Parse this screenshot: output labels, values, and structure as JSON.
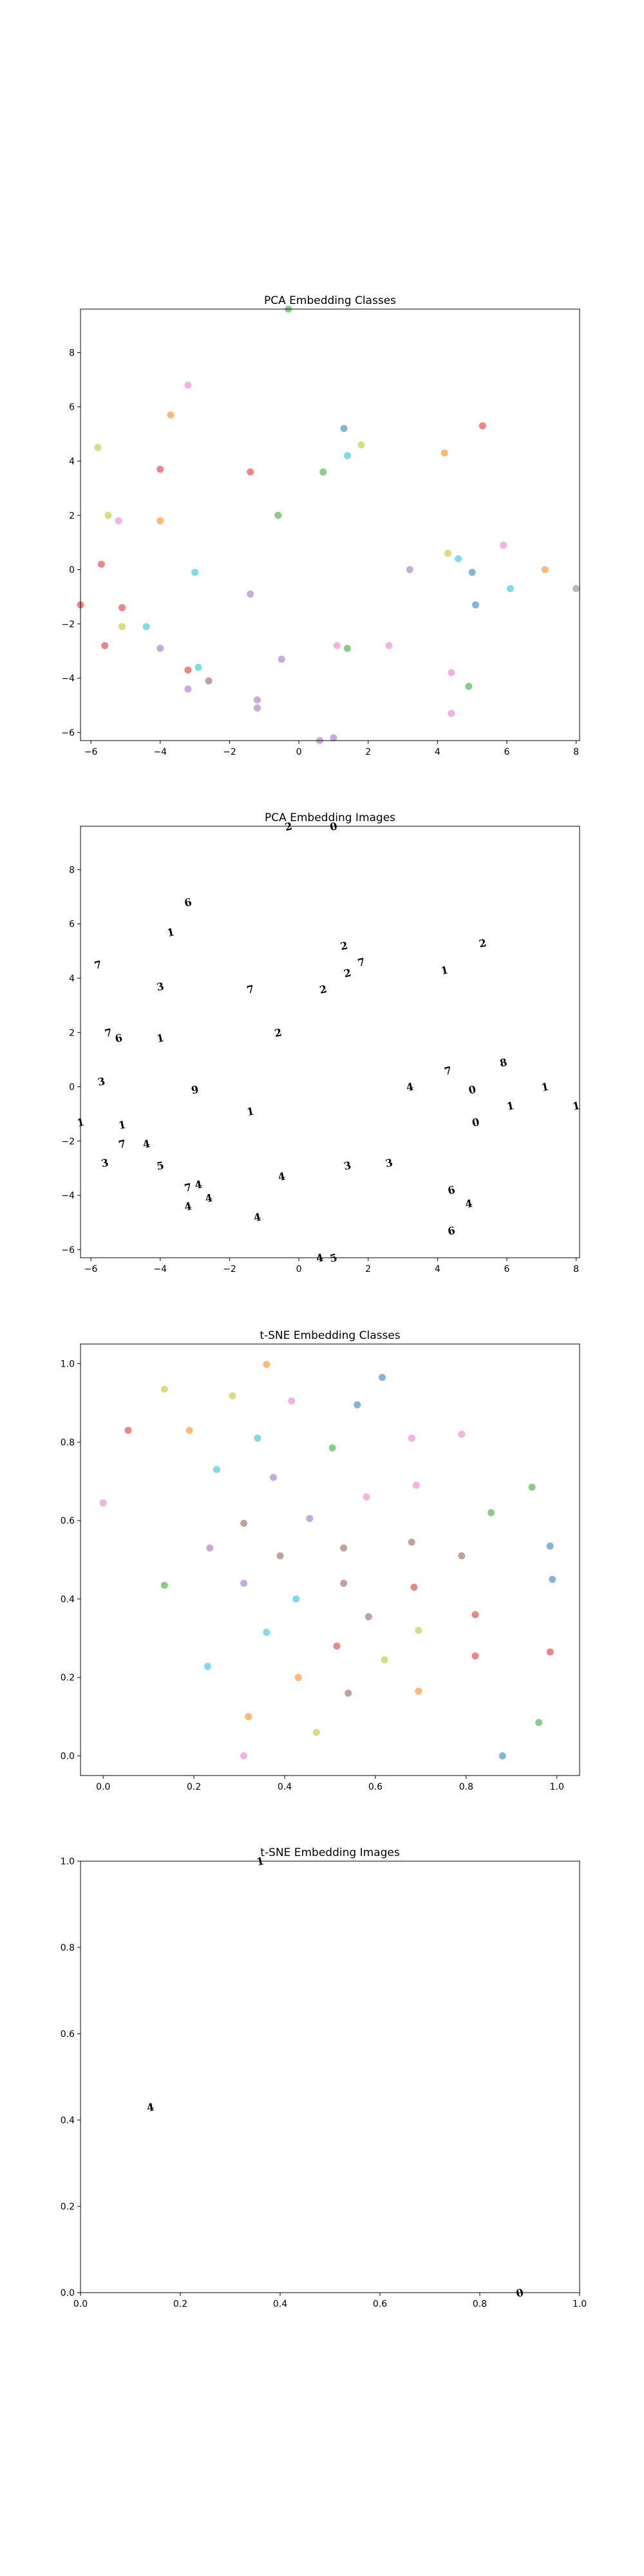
{
  "chart_data": [
    {
      "type": "scatter",
      "title": "PCA Embedding Classes",
      "xlim": [
        -6.3,
        8.1
      ],
      "ylim": [
        -6.3,
        9.6
      ],
      "xticks": [
        -6,
        -4,
        -2,
        0,
        2,
        4,
        6,
        8
      ],
      "yticks": [
        -6,
        -4,
        -2,
        0,
        2,
        4,
        6,
        8
      ],
      "points": [
        {
          "x": -3.2,
          "y": 6.8,
          "color": "#e377c2"
        },
        {
          "x": -3.7,
          "y": 5.7,
          "color": "#ff7f0e"
        },
        {
          "x": -5.8,
          "y": 4.5,
          "color": "#bcbd22"
        },
        {
          "x": -4.0,
          "y": 3.7,
          "color": "#d62728"
        },
        {
          "x": -5.5,
          "y": 2.0,
          "color": "#bcbd22"
        },
        {
          "x": -5.2,
          "y": 1.8,
          "color": "#e377c2"
        },
        {
          "x": -4.0,
          "y": 1.8,
          "color": "#ff7f0e"
        },
        {
          "x": -5.7,
          "y": 0.2,
          "color": "#d62728"
        },
        {
          "x": -5.1,
          "y": -1.4,
          "color": "#d62728"
        },
        {
          "x": -5.1,
          "y": -2.1,
          "color": "#bcbd22"
        },
        {
          "x": -4.4,
          "y": -2.1,
          "color": "#17becf"
        },
        {
          "x": -5.6,
          "y": -2.8,
          "color": "#d62728"
        },
        {
          "x": -4.0,
          "y": -2.9,
          "color": "#9467bd"
        },
        {
          "x": -3.0,
          "y": -0.1,
          "color": "#17becf"
        },
        {
          "x": -2.9,
          "y": -3.6,
          "color": "#17becf"
        },
        {
          "x": -3.2,
          "y": -3.7,
          "color": "#d62728"
        },
        {
          "x": -3.2,
          "y": -4.4,
          "color": "#9467bd"
        },
        {
          "x": -2.6,
          "y": -4.1,
          "color": "#8c564b"
        },
        {
          "x": -1.4,
          "y": 3.6,
          "color": "#d62728"
        },
        {
          "x": -1.4,
          "y": -0.9,
          "color": "#9467bd"
        },
        {
          "x": -1.2,
          "y": -4.8,
          "color": "#9467bd"
        },
        {
          "x": -1.2,
          "y": -5.1,
          "color": "#9467bd"
        },
        {
          "x": -0.6,
          "y": 2.0,
          "color": "#2ca02c"
        },
        {
          "x": -0.5,
          "y": -3.3,
          "color": "#9467bd"
        },
        {
          "x": -0.3,
          "y": 9.6,
          "color": "#2ca02c"
        },
        {
          "x": 0.7,
          "y": 3.6,
          "color": "#2ca02c"
        },
        {
          "x": 1.3,
          "y": 5.2,
          "color": "#1f77b4"
        },
        {
          "x": 1.4,
          "y": 4.2,
          "color": "#17becf"
        },
        {
          "x": 1.8,
          "y": 4.6,
          "color": "#bcbd22"
        },
        {
          "x": 1.1,
          "y": -2.8,
          "color": "#e377c2"
        },
        {
          "x": 1.4,
          "y": -2.9,
          "color": "#2ca02c"
        },
        {
          "x": 0.6,
          "y": -6.3,
          "color": "#9467bd"
        },
        {
          "x": 1.0,
          "y": -6.2,
          "color": "#9467bd"
        },
        {
          "x": 2.6,
          "y": -2.8,
          "color": "#e377c2"
        },
        {
          "x": 3.2,
          "y": 0.0,
          "color": "#9467bd"
        },
        {
          "x": 4.2,
          "y": 4.3,
          "color": "#ff7f0e"
        },
        {
          "x": 5.3,
          "y": 5.3,
          "color": "#d62728"
        },
        {
          "x": 4.3,
          "y": 0.6,
          "color": "#bcbd22"
        },
        {
          "x": 4.6,
          "y": 0.4,
          "color": "#17becf"
        },
        {
          "x": 5.0,
          "y": -0.1,
          "color": "#1f77b4"
        },
        {
          "x": 5.1,
          "y": -1.3,
          "color": "#1f77b4"
        },
        {
          "x": 4.4,
          "y": -3.8,
          "color": "#e377c2"
        },
        {
          "x": 4.9,
          "y": -4.3,
          "color": "#2ca02c"
        },
        {
          "x": 4.4,
          "y": -5.3,
          "color": "#e377c2"
        },
        {
          "x": 5.9,
          "y": 0.9,
          "color": "#e377c2"
        },
        {
          "x": 6.1,
          "y": -0.7,
          "color": "#17becf"
        },
        {
          "x": 7.1,
          "y": 0.0,
          "color": "#ff7f0e"
        },
        {
          "x": 8.0,
          "y": -0.7,
          "color": "#7f7f7f"
        },
        {
          "x": -6.3,
          "y": -1.3,
          "color": "#d62728"
        }
      ]
    },
    {
      "type": "scatter",
      "title": "PCA Embedding Images",
      "xlim": [
        -6.3,
        8.1
      ],
      "ylim": [
        -6.3,
        9.6
      ],
      "xticks": [
        -6,
        -4,
        -2,
        0,
        2,
        4,
        6,
        8
      ],
      "yticks": [
        -6,
        -4,
        -2,
        0,
        2,
        4,
        6,
        8
      ],
      "points": [
        {
          "x": -3.2,
          "y": 6.8,
          "glyph": "6"
        },
        {
          "x": -3.7,
          "y": 5.7,
          "glyph": "1"
        },
        {
          "x": -5.8,
          "y": 4.5,
          "glyph": "7"
        },
        {
          "x": -4.0,
          "y": 3.7,
          "glyph": "3"
        },
        {
          "x": -5.5,
          "y": 2.0,
          "glyph": "7"
        },
        {
          "x": -5.2,
          "y": 1.8,
          "glyph": "6"
        },
        {
          "x": -4.0,
          "y": 1.8,
          "glyph": "1"
        },
        {
          "x": -5.7,
          "y": 0.2,
          "glyph": "3"
        },
        {
          "x": -5.1,
          "y": -1.4,
          "glyph": "1"
        },
        {
          "x": -5.1,
          "y": -2.1,
          "glyph": "7"
        },
        {
          "x": -4.4,
          "y": -2.1,
          "glyph": "4"
        },
        {
          "x": -5.6,
          "y": -2.8,
          "glyph": "3"
        },
        {
          "x": -4.0,
          "y": -2.9,
          "glyph": "5"
        },
        {
          "x": -3.0,
          "y": -0.1,
          "glyph": "9"
        },
        {
          "x": -2.9,
          "y": -3.6,
          "glyph": "4"
        },
        {
          "x": -3.2,
          "y": -3.7,
          "glyph": "7"
        },
        {
          "x": -3.2,
          "y": -4.4,
          "glyph": "4"
        },
        {
          "x": -2.6,
          "y": -4.1,
          "glyph": "4"
        },
        {
          "x": -1.4,
          "y": 3.6,
          "glyph": "7"
        },
        {
          "x": -1.4,
          "y": -0.9,
          "glyph": "1"
        },
        {
          "x": -1.2,
          "y": -4.8,
          "glyph": "4"
        },
        {
          "x": -0.6,
          "y": 2.0,
          "glyph": "2"
        },
        {
          "x": -0.5,
          "y": -3.3,
          "glyph": "4"
        },
        {
          "x": -0.3,
          "y": 9.6,
          "glyph": "2"
        },
        {
          "x": 0.7,
          "y": 3.6,
          "glyph": "2"
        },
        {
          "x": 1.3,
          "y": 5.2,
          "glyph": "2"
        },
        {
          "x": 1.4,
          "y": 4.2,
          "glyph": "2"
        },
        {
          "x": 1.8,
          "y": 4.6,
          "glyph": "7"
        },
        {
          "x": 1.4,
          "y": -2.9,
          "glyph": "3"
        },
        {
          "x": 1.0,
          "y": 9.6,
          "glyph": "0"
        },
        {
          "x": 0.6,
          "y": -6.3,
          "glyph": "4"
        },
        {
          "x": 1.0,
          "y": -6.3,
          "glyph": "5"
        },
        {
          "x": 2.6,
          "y": -2.8,
          "glyph": "3"
        },
        {
          "x": 3.2,
          "y": 0.0,
          "glyph": "4"
        },
        {
          "x": 4.2,
          "y": 4.3,
          "glyph": "1"
        },
        {
          "x": 5.3,
          "y": 5.3,
          "glyph": "2"
        },
        {
          "x": 4.3,
          "y": 0.6,
          "glyph": "7"
        },
        {
          "x": 5.0,
          "y": -0.1,
          "glyph": "0"
        },
        {
          "x": 5.1,
          "y": -1.3,
          "glyph": "0"
        },
        {
          "x": 4.4,
          "y": -3.8,
          "glyph": "6"
        },
        {
          "x": 4.9,
          "y": -4.3,
          "glyph": "4"
        },
        {
          "x": 4.4,
          "y": -5.3,
          "glyph": "6"
        },
        {
          "x": 5.9,
          "y": 0.9,
          "glyph": "8"
        },
        {
          "x": 6.1,
          "y": -0.7,
          "glyph": "1"
        },
        {
          "x": 7.1,
          "y": 0.0,
          "glyph": "1"
        },
        {
          "x": 8.0,
          "y": -0.7,
          "glyph": "1"
        },
        {
          "x": -6.3,
          "y": -1.3,
          "glyph": "1"
        }
      ]
    },
    {
      "type": "scatter",
      "title": "t-SNE Embedding Classes",
      "xlim": [
        -0.05,
        1.05
      ],
      "ylim": [
        -0.05,
        1.05
      ],
      "xticks": [
        0.0,
        0.2,
        0.4,
        0.6,
        0.8,
        1.0
      ],
      "yticks": [
        0.0,
        0.2,
        0.4,
        0.6,
        0.8,
        1.0
      ],
      "points": [
        {
          "x": 0.0,
          "y": 0.645,
          "color": "#e377c2"
        },
        {
          "x": 0.055,
          "y": 0.83,
          "color": "#d62728"
        },
        {
          "x": 0.135,
          "y": 0.935,
          "color": "#bcbd22"
        },
        {
          "x": 0.135,
          "y": 0.435,
          "color": "#2ca02c"
        },
        {
          "x": 0.19,
          "y": 0.83,
          "color": "#ff7f0e"
        },
        {
          "x": 0.23,
          "y": 0.228,
          "color": "#17becf"
        },
        {
          "x": 0.235,
          "y": 0.53,
          "color": "#9467bd"
        },
        {
          "x": 0.25,
          "y": 0.73,
          "color": "#17becf"
        },
        {
          "x": 0.285,
          "y": 0.918,
          "color": "#bcbd22"
        },
        {
          "x": 0.31,
          "y": 0.593,
          "color": "#8c564b"
        },
        {
          "x": 0.31,
          "y": 0.44,
          "color": "#9467bd"
        },
        {
          "x": 0.31,
          "y": 0.0,
          "color": "#e377c2"
        },
        {
          "x": 0.32,
          "y": 0.1,
          "color": "#ff7f0e"
        },
        {
          "x": 0.34,
          "y": 0.81,
          "color": "#17becf"
        },
        {
          "x": 0.36,
          "y": 0.998,
          "color": "#ff7f0e"
        },
        {
          "x": 0.36,
          "y": 0.315,
          "color": "#17becf"
        },
        {
          "x": 0.375,
          "y": 0.71,
          "color": "#9467bd"
        },
        {
          "x": 0.39,
          "y": 0.51,
          "color": "#8c564b"
        },
        {
          "x": 0.415,
          "y": 0.905,
          "color": "#e377c2"
        },
        {
          "x": 0.425,
          "y": 0.4,
          "color": "#17becf"
        },
        {
          "x": 0.43,
          "y": 0.2,
          "color": "#ff7f0e"
        },
        {
          "x": 0.455,
          "y": 0.605,
          "color": "#9467bd"
        },
        {
          "x": 0.47,
          "y": 0.06,
          "color": "#bcbd22"
        },
        {
          "x": 0.505,
          "y": 0.785,
          "color": "#2ca02c"
        },
        {
          "x": 0.515,
          "y": 0.28,
          "color": "#d62728"
        },
        {
          "x": 0.53,
          "y": 0.53,
          "color": "#8c564b"
        },
        {
          "x": 0.53,
          "y": 0.44,
          "color": "#8c564b"
        },
        {
          "x": 0.54,
          "y": 0.16,
          "color": "#8c564b"
        },
        {
          "x": 0.56,
          "y": 0.895,
          "color": "#1f77b4"
        },
        {
          "x": 0.58,
          "y": 0.66,
          "color": "#e377c2"
        },
        {
          "x": 0.585,
          "y": 0.355,
          "color": "#8c564b"
        },
        {
          "x": 0.615,
          "y": 0.965,
          "color": "#1f77b4"
        },
        {
          "x": 0.62,
          "y": 0.245,
          "color": "#bcbd22"
        },
        {
          "x": 0.68,
          "y": 0.81,
          "color": "#e377c2"
        },
        {
          "x": 0.68,
          "y": 0.545,
          "color": "#8c564b"
        },
        {
          "x": 0.685,
          "y": 0.43,
          "color": "#d62728"
        },
        {
          "x": 0.69,
          "y": 0.69,
          "color": "#e377c2"
        },
        {
          "x": 0.695,
          "y": 0.32,
          "color": "#bcbd22"
        },
        {
          "x": 0.695,
          "y": 0.165,
          "color": "#ff7f0e"
        },
        {
          "x": 0.79,
          "y": 0.82,
          "color": "#e377c2"
        },
        {
          "x": 0.79,
          "y": 0.51,
          "color": "#8c564b"
        },
        {
          "x": 0.82,
          "y": 0.36,
          "color": "#d62728"
        },
        {
          "x": 0.82,
          "y": 0.255,
          "color": "#d62728"
        },
        {
          "x": 0.855,
          "y": 0.62,
          "color": "#2ca02c"
        },
        {
          "x": 0.88,
          "y": 0.0,
          "color": "#1f77b4"
        },
        {
          "x": 0.945,
          "y": 0.685,
          "color": "#2ca02c"
        },
        {
          "x": 0.96,
          "y": 0.085,
          "color": "#2ca02c"
        },
        {
          "x": 0.985,
          "y": 0.535,
          "color": "#1f77b4"
        },
        {
          "x": 0.99,
          "y": 0.45,
          "color": "#1f77b4"
        },
        {
          "x": 0.985,
          "y": 0.265,
          "color": "#d62728"
        }
      ]
    },
    {
      "type": "scatter",
      "title": "t-SNE Embedding Images",
      "xlim": [
        0.0,
        1.0
      ],
      "ylim": [
        0.0,
        1.0
      ],
      "xticks": [
        0.0,
        0.2,
        0.4,
        0.6,
        0.8,
        1.0
      ],
      "yticks": [
        0.0,
        0.2,
        0.4,
        0.6,
        0.8,
        1.0
      ],
      "points": [
        {
          "x": 0.36,
          "y": 1.0,
          "glyph": "1"
        },
        {
          "x": 0.14,
          "y": 0.43,
          "glyph": "4"
        },
        {
          "x": 0.88,
          "y": 0.0,
          "glyph": "0"
        }
      ]
    }
  ]
}
